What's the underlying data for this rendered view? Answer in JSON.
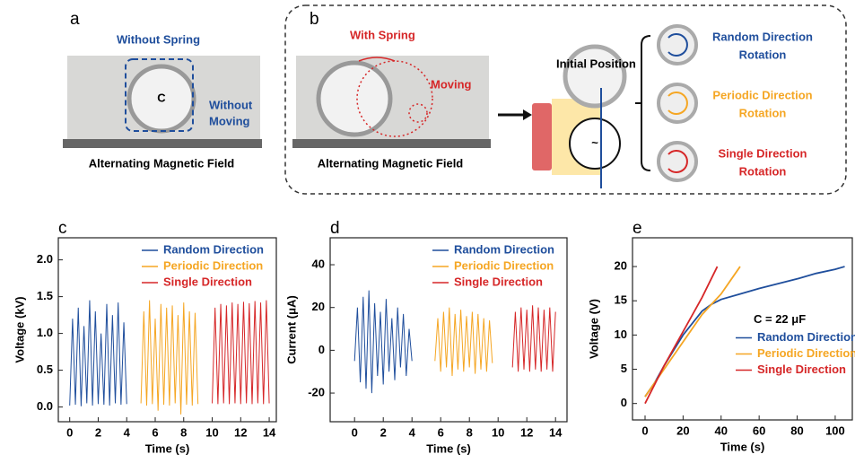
{
  "panels": {
    "a": {
      "label": "a",
      "title": "Without Spring",
      "note": [
        "Without",
        "Moving"
      ],
      "caption": "Alternating Magnetic Field"
    },
    "b": {
      "label": "b",
      "title": "With Spring",
      "note": "Moving",
      "caption": "Alternating Magnetic Field",
      "initial": "Initial Position",
      "modes": [
        {
          "lines": [
            "Random Direction",
            "Rotation"
          ],
          "color": "#1f4e9c"
        },
        {
          "lines": [
            "Periodic Direction",
            "Rotation"
          ],
          "color": "#f5a623"
        },
        {
          "lines": [
            "Single Direction",
            "Rotation"
          ],
          "color": "#d62728"
        }
      ]
    }
  },
  "chart_data": [
    {
      "type": "line",
      "label": "c",
      "xlabel": "Time (s)",
      "ylabel": "Voltage (kV)",
      "xlim": [
        -0.8,
        14.5
      ],
      "ylim": [
        -0.2,
        2.3
      ],
      "xticks": [
        0,
        2,
        4,
        6,
        8,
        10,
        12,
        14
      ],
      "yticks": [
        {
          "value": 0,
          "label": "0.0"
        },
        {
          "value": 0.5,
          "label": "0.5"
        },
        {
          "value": 1,
          "label": "1.0"
        },
        {
          "value": 1.5,
          "label": "1.5"
        },
        {
          "value": 2,
          "label": "2.0"
        }
      ],
      "legend": "upper right",
      "series": [
        {
          "name": "Random Direction",
          "color": "#1f4e9c",
          "x": [
            0,
            0.2,
            0.4,
            0.6,
            0.8,
            1,
            1.2,
            1.4,
            1.6,
            1.8,
            2,
            2.2,
            2.4,
            2.6,
            2.8,
            3,
            3.2,
            3.4,
            3.6,
            3.8,
            4
          ],
          "values": [
            0.02,
            1.2,
            0.03,
            1.35,
            0.01,
            1.1,
            0.05,
            1.45,
            0.02,
            1.3,
            0.04,
            1.0,
            0.03,
            1.4,
            0.02,
            1.25,
            0.05,
            1.42,
            0.03,
            1.15,
            0.04
          ]
        },
        {
          "name": "Periodic Direction",
          "color": "#f5a623",
          "x": [
            5,
            5.2,
            5.4,
            5.6,
            5.8,
            6,
            6.2,
            6.4,
            6.6,
            6.8,
            7,
            7.2,
            7.4,
            7.6,
            7.8,
            8,
            8.2,
            8.4,
            8.6,
            8.8,
            9
          ],
          "values": [
            0.05,
            1.3,
            0.02,
            1.45,
            0.04,
            1.2,
            -0.05,
            1.4,
            0.03,
            1.35,
            0.02,
            1.38,
            0.05,
            1.25,
            -0.1,
            1.42,
            0.03,
            1.3,
            0.02,
            1.28,
            0.04
          ]
        },
        {
          "name": "Single Direction",
          "color": "#d62728",
          "x": [
            10,
            10.2,
            10.4,
            10.6,
            10.8,
            11,
            11.2,
            11.4,
            11.6,
            11.8,
            12,
            12.2,
            12.4,
            12.6,
            12.8,
            13,
            13.2,
            13.4,
            13.6,
            13.8,
            14
          ],
          "values": [
            0.05,
            1.35,
            0.04,
            1.4,
            0.05,
            1.38,
            0.04,
            1.42,
            0.05,
            1.4,
            0.04,
            1.43,
            0.05,
            1.41,
            0.04,
            1.44,
            0.05,
            1.42,
            0.04,
            1.45,
            0.05
          ]
        }
      ]
    },
    {
      "type": "line",
      "label": "d",
      "xlabel": "Time (s)",
      "ylabel": "Current (μA)",
      "xlim": [
        -1.7,
        14.8
      ],
      "ylim": [
        -33.4,
        52.6
      ],
      "xticks": [
        0,
        2,
        4,
        6,
        8,
        10,
        12,
        14
      ],
      "yticks": [
        -20,
        0,
        20,
        40
      ],
      "legend": "upper right",
      "series": [
        {
          "name": "Random Direction",
          "color": "#1f4e9c",
          "x": [
            0,
            0.2,
            0.4,
            0.6,
            0.8,
            1,
            1.2,
            1.4,
            1.6,
            1.8,
            2,
            2.2,
            2.4,
            2.6,
            2.8,
            3,
            3.2,
            3.4,
            3.6,
            3.8,
            4
          ],
          "values": [
            -5,
            20,
            -15,
            25,
            -18,
            28,
            -20,
            22,
            -12,
            18,
            -16,
            24,
            -10,
            15,
            -14,
            20,
            -8,
            17,
            -12,
            10,
            -5
          ]
        },
        {
          "name": "Periodic Direction",
          "color": "#f5a623",
          "x": [
            5.6,
            5.8,
            6,
            6.2,
            6.4,
            6.6,
            6.8,
            7,
            7.2,
            7.4,
            7.6,
            7.8,
            8,
            8.2,
            8.4,
            8.6,
            8.8,
            9,
            9.2,
            9.4,
            9.6
          ],
          "values": [
            -5,
            15,
            -10,
            18,
            -8,
            20,
            -12,
            17,
            -9,
            19,
            -10,
            16,
            -8,
            18,
            -11,
            17,
            -9,
            15,
            -10,
            14,
            -6
          ]
        },
        {
          "name": "Single Direction",
          "color": "#d62728",
          "x": [
            11,
            11.2,
            11.4,
            11.6,
            11.8,
            12,
            12.2,
            12.4,
            12.6,
            12.8,
            13,
            13.2,
            13.4,
            13.6,
            13.8,
            14
          ],
          "values": [
            -8,
            18,
            -10,
            20,
            -9,
            19,
            -10,
            21,
            -9,
            20,
            -10,
            19,
            -9,
            20,
            -10,
            18
          ]
        }
      ]
    },
    {
      "type": "line",
      "label": "e",
      "xlabel": "Time (s)",
      "ylabel": "Voltage (V)",
      "xlim": [
        -6.6,
        109
      ],
      "ylim": [
        -2.4,
        24.2
      ],
      "xticks": [
        0,
        20,
        40,
        60,
        80,
        100
      ],
      "yticks": [
        0,
        5,
        10,
        15,
        20
      ],
      "legend": "center right",
      "annotation": "C = 22 μF",
      "series": [
        {
          "name": "Random Direction",
          "color": "#1f4e9c",
          "x": [
            0,
            5,
            10,
            20,
            30,
            35,
            40,
            50,
            60,
            70,
            80,
            90,
            100,
            105
          ],
          "values": [
            1,
            3,
            5.5,
            10,
            13.5,
            14.5,
            15.2,
            16,
            16.8,
            17.5,
            18.2,
            19,
            19.6,
            20
          ]
        },
        {
          "name": "Periodic Direction",
          "color": "#f5a623",
          "x": [
            0,
            10,
            20,
            30,
            40,
            45,
            50
          ],
          "values": [
            1,
            5,
            9,
            13,
            16,
            18,
            20
          ]
        },
        {
          "name": "Single Direction",
          "color": "#d62728",
          "x": [
            0,
            10,
            20,
            30,
            38
          ],
          "values": [
            0,
            5.5,
            10.5,
            15.5,
            20
          ]
        }
      ]
    }
  ]
}
